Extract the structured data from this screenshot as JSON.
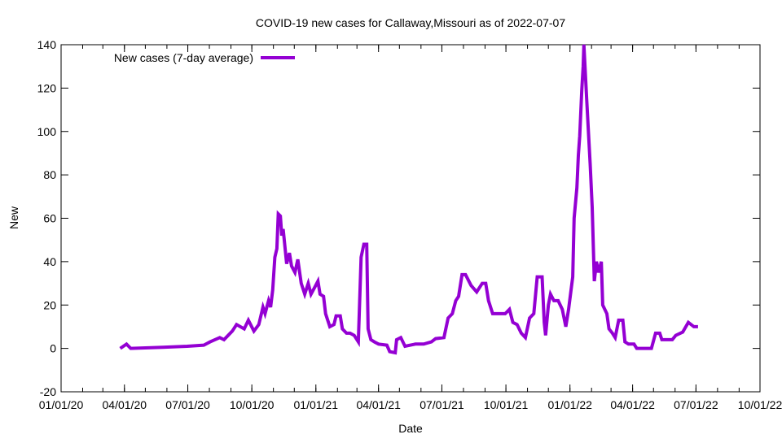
{
  "chart_data": {
    "type": "line",
    "title": "COVID-19 new cases for Callaway,Missouri as of 2022-07-07",
    "xlabel": "Date",
    "ylabel": "New",
    "x_units": "days since 2020-01-01",
    "x_origin": "2020-01-01",
    "xlim": [
      0,
      1004
    ],
    "ylim": [
      -20,
      140
    ],
    "yticks": [
      -20,
      0,
      20,
      40,
      60,
      80,
      100,
      120,
      140
    ],
    "xticks": [
      {
        "day": 0,
        "label": "01/01/20"
      },
      {
        "day": 91,
        "label": "04/01/20"
      },
      {
        "day": 182,
        "label": "07/01/20"
      },
      {
        "day": 274,
        "label": "10/01/20"
      },
      {
        "day": 366,
        "label": "01/01/21"
      },
      {
        "day": 456,
        "label": "04/01/21"
      },
      {
        "day": 547,
        "label": "07/01/21"
      },
      {
        "day": 639,
        "label": "10/01/21"
      },
      {
        "day": 731,
        "label": "01/01/22"
      },
      {
        "day": 821,
        "label": "04/01/22"
      },
      {
        "day": 912,
        "label": "07/01/22"
      },
      {
        "day": 1004,
        "label": "10/01/22"
      }
    ],
    "grid": false,
    "legend_position": "top-left",
    "series": [
      {
        "name": "New cases (7-day average)",
        "color": "#9400d3",
        "x": [
          85,
          94,
          100,
          146,
          181,
          205,
          214,
          228,
          234,
          246,
          252,
          263,
          269,
          277,
          284,
          290,
          293,
          298,
          301,
          304,
          307,
          310,
          312,
          315,
          317,
          319,
          324,
          328,
          331,
          336,
          340,
          345,
          350,
          355,
          359,
          364,
          369,
          372,
          377,
          380,
          386,
          392,
          395,
          401,
          404,
          410,
          415,
          421,
          427,
          431,
          435,
          439,
          441,
          445,
          450,
          456,
          468,
          472,
          480,
          482,
          488,
          494,
          509,
          521,
          532,
          538,
          550,
          556,
          562,
          567,
          571,
          576,
          581,
          589,
          597,
          605,
          610,
          614,
          620,
          626,
          638,
          644,
          649,
          655,
          661,
          667,
          673,
          679,
          684,
          691,
          694,
          696,
          700,
          703,
          708,
          714,
          720,
          725,
          729,
          735,
          737,
          741,
          743,
          745,
          748,
          750,
          751,
          755,
          760,
          763,
          766,
          769,
          772,
          776,
          778,
          784,
          787,
          792,
          796,
          801,
          807,
          810,
          815,
          823,
          827,
          848,
          854,
          860,
          863,
          878,
          883,
          893,
          901,
          909,
          915
        ],
        "y": [
          0,
          2,
          0,
          0.5,
          1,
          1.5,
          3,
          5,
          4,
          8,
          11,
          9,
          13,
          8,
          11,
          19,
          16,
          22,
          19,
          27,
          42,
          46,
          62,
          61,
          52,
          55,
          39,
          44,
          38,
          35,
          41,
          30,
          25,
          30,
          25,
          28,
          31,
          25,
          24,
          16,
          10,
          11,
          15,
          15,
          9,
          7,
          7,
          6,
          3,
          42,
          48,
          48,
          9,
          4,
          3,
          2,
          1.5,
          -1.5,
          -2,
          4,
          5,
          1,
          2,
          2,
          3,
          4.5,
          5,
          14,
          16,
          22,
          24,
          34,
          34,
          29,
          26,
          30,
          30,
          22,
          16,
          16,
          16,
          18,
          12,
          11,
          7,
          5,
          14,
          16,
          33,
          33,
          12,
          6,
          20,
          25,
          22,
          22,
          18,
          10,
          18,
          33,
          60,
          74,
          89,
          98,
          119,
          130,
          140,
          115,
          85,
          65,
          31,
          40,
          35,
          40,
          20,
          16,
          9,
          7,
          5,
          13,
          13,
          3,
          2,
          2,
          0,
          0,
          7,
          7,
          4,
          4,
          6,
          7.5,
          12,
          10,
          10
        ]
      }
    ]
  }
}
